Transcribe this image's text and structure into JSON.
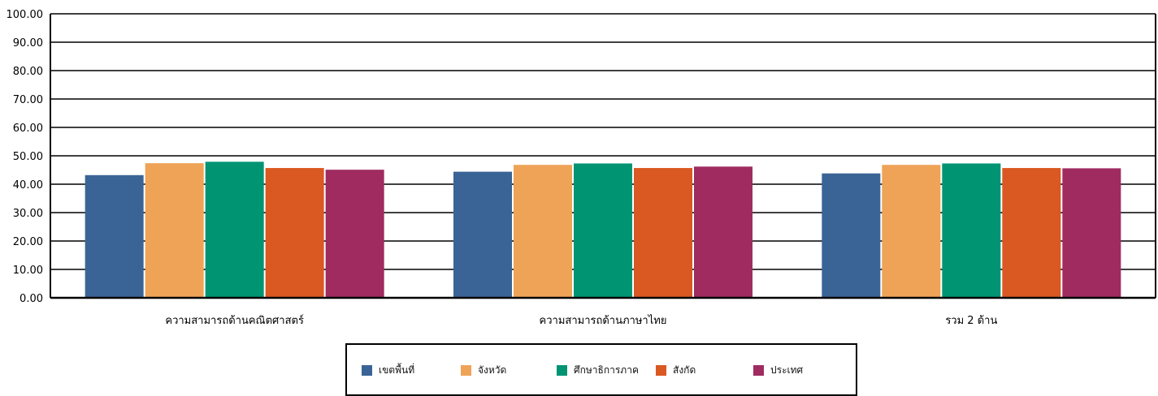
{
  "chart_data": {
    "type": "bar",
    "title": "",
    "xlabel": "",
    "ylabel": "",
    "ylim": [
      0,
      100
    ],
    "yticks": [
      "0.00",
      "10.00",
      "20.00",
      "30.00",
      "40.00",
      "50.00",
      "60.00",
      "70.00",
      "80.00",
      "90.00",
      "100.00"
    ],
    "grid": true,
    "legend_position": "bottom",
    "categories": [
      "ความสามารถด้านคณิตศาสตร์",
      "ความสามารถด้านภาษาไทย",
      "รวม 2 ด้าน"
    ],
    "series": [
      {
        "name": "เขตพื้นที่",
        "color": "#3A6496",
        "values": [
          43.2,
          44.4,
          43.8
        ]
      },
      {
        "name": "จังหวัด",
        "color": "#EEA357",
        "values": [
          47.4,
          46.8,
          46.8
        ]
      },
      {
        "name": "ศึกษาธิการภาค",
        "color": "#009473",
        "values": [
          47.9,
          47.3,
          47.3
        ]
      },
      {
        "name": "สังกัด",
        "color": "#DA5822",
        "values": [
          45.7,
          45.7,
          45.7
        ]
      },
      {
        "name": "ประเทศ",
        "color": "#9F2B60",
        "values": [
          45.1,
          46.2,
          45.6
        ]
      }
    ]
  }
}
